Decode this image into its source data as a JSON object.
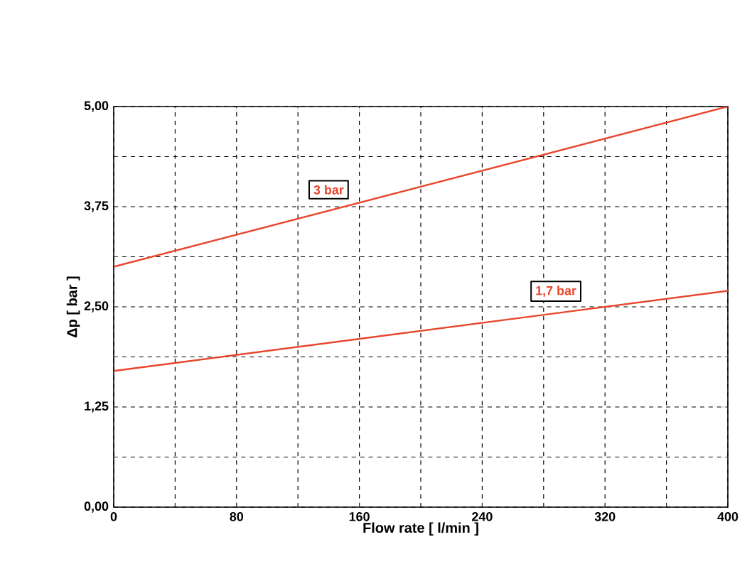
{
  "chart_data": {
    "type": "line",
    "xlabel": "Flow rate [ l/min ]",
    "ylabel": "Δp [ bar ]",
    "x": [
      0,
      400
    ],
    "series": [
      {
        "name": "3 bar",
        "color": "#e8452c",
        "values": [
          3,
          5
        ]
      },
      {
        "name": "1,7 bar",
        "color": "#e8452c",
        "values": [
          1.7,
          2.7
        ]
      }
    ],
    "xlim": [
      0,
      400
    ],
    "xticks": [
      0,
      80,
      160,
      240,
      320,
      400
    ],
    "ylim": [
      0,
      5
    ],
    "yticks": [
      {
        "value": 0,
        "label": "0,00"
      },
      {
        "value": 1.25,
        "label": "1,25"
      },
      {
        "value": 2.5,
        "label": "2,50"
      },
      {
        "value": 3.75,
        "label": "3,75"
      },
      {
        "value": 5,
        "label": "5,00"
      }
    ],
    "grid": true,
    "marker": "none",
    "line_style": "solid"
  }
}
